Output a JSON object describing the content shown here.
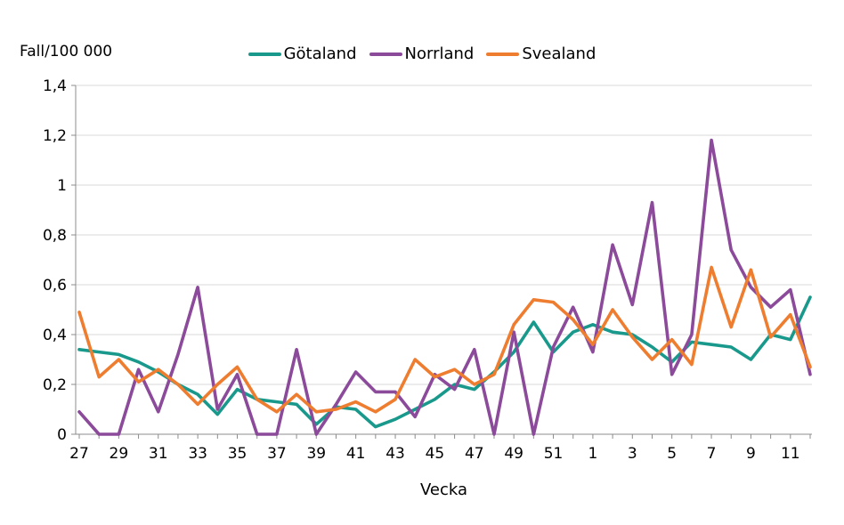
{
  "chart_data": {
    "type": "line",
    "ylabel": "Fall/100 000",
    "xlabel": "Vecka",
    "ylim": [
      0,
      1.4
    ],
    "ytick_values": [
      0,
      0.2,
      0.4,
      0.6,
      0.8,
      1,
      1.2,
      1.4
    ],
    "ytick_labels": [
      "0",
      "0,2",
      "0,4",
      "0,6",
      "0,8",
      "1",
      "1,2",
      "1,4"
    ],
    "x_labels": [
      "27",
      "28",
      "29",
      "30",
      "31",
      "32",
      "33",
      "34",
      "35",
      "36",
      "37",
      "38",
      "39",
      "40",
      "41",
      "42",
      "43",
      "44",
      "45",
      "46",
      "47",
      "48",
      "49",
      "50",
      "51",
      "52",
      "1",
      "2",
      "3",
      "4",
      "5",
      "6",
      "7",
      "8",
      "9",
      "10",
      "11",
      "12"
    ],
    "x_labels_shown": [
      "27",
      "29",
      "31",
      "33",
      "35",
      "37",
      "39",
      "41",
      "43",
      "45",
      "47",
      "49",
      "51",
      "1",
      "3",
      "5",
      "7",
      "9",
      "11"
    ],
    "grid": "horizontal",
    "legend_position": "top-center",
    "grid_color": "#d9d9d9",
    "axis_color": "#8c8c8c",
    "text_color": "#000000",
    "series": [
      {
        "name": "Götaland",
        "color": "#18998B",
        "values": [
          0.34,
          0.33,
          0.32,
          0.29,
          0.25,
          0.2,
          0.16,
          0.08,
          0.18,
          0.14,
          0.13,
          0.12,
          0.04,
          0.11,
          0.1,
          0.03,
          0.06,
          0.1,
          0.14,
          0.2,
          0.18,
          0.25,
          0.33,
          0.45,
          0.33,
          0.41,
          0.44,
          0.41,
          0.4,
          0.35,
          0.29,
          0.37,
          0.36,
          0.35,
          0.3,
          0.4,
          0.38,
          0.55
        ]
      },
      {
        "name": "Norrland",
        "color": "#8C4A9B",
        "values": [
          0.09,
          0.0,
          0.0,
          0.26,
          0.09,
          0.32,
          0.59,
          0.1,
          0.24,
          0.0,
          0.0,
          0.34,
          0.0,
          0.12,
          0.25,
          0.17,
          0.17,
          0.07,
          0.24,
          0.18,
          0.34,
          0.0,
          0.41,
          0.0,
          0.35,
          0.51,
          0.33,
          0.76,
          0.52,
          0.93,
          0.24,
          0.4,
          1.18,
          0.74,
          0.59,
          0.51,
          0.58,
          0.24
        ]
      },
      {
        "name": "Svealand",
        "color": "#EE7D30",
        "values": [
          0.49,
          0.23,
          0.3,
          0.21,
          0.26,
          0.2,
          0.12,
          0.2,
          0.27,
          0.14,
          0.09,
          0.16,
          0.09,
          0.1,
          0.13,
          0.09,
          0.14,
          0.3,
          0.23,
          0.26,
          0.2,
          0.24,
          0.44,
          0.54,
          0.53,
          0.46,
          0.36,
          0.5,
          0.39,
          0.3,
          0.38,
          0.28,
          0.67,
          0.43,
          0.66,
          0.39,
          0.48,
          0.27
        ]
      }
    ]
  }
}
